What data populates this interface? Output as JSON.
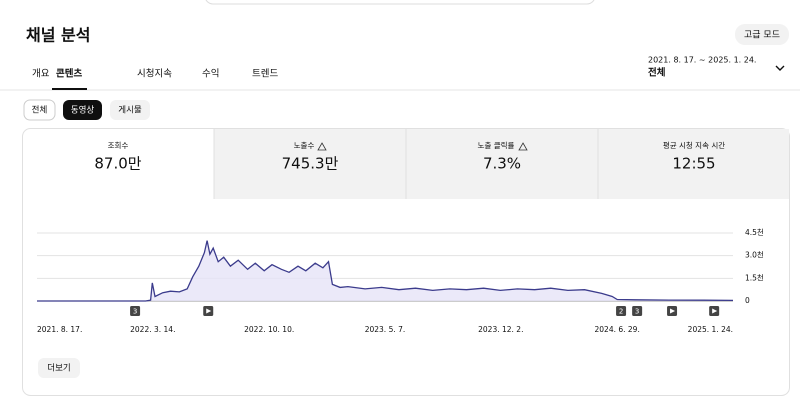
{
  "header": {
    "title": "채널 분석",
    "button": "고급 모드"
  },
  "tabs": [
    "개요",
    "콘텐츠",
    "시청지속",
    "수익",
    "트렌드"
  ],
  "date_range": {
    "range": "2021. 8. 17. ~ 2025. 1. 24.",
    "label": "전체"
  },
  "chips": [
    "전체",
    "동영상",
    "게시물"
  ],
  "metrics": [
    {
      "label": "조회수",
      "value": "87.0만"
    },
    {
      "label": "노출수",
      "value": "745.3만"
    },
    {
      "label": "노출 클릭률",
      "value": "7.3%"
    },
    {
      "label": "평균 시청 지속 시간",
      "value": "12:55"
    }
  ],
  "chart": {
    "type": "line",
    "color": "#3b3b8c",
    "x": [
      "2021-08-17",
      "2022-03-01",
      "2022-03-10",
      "2022-03-13",
      "2022-03-18",
      "2022-04-01",
      "2022-04-15",
      "2022-05-01",
      "2022-05-15",
      "2022-05-25",
      "2022-06-05",
      "2022-06-15",
      "2022-06-20",
      "2022-06-25",
      "2022-07-01",
      "2022-07-10",
      "2022-07-20",
      "2022-08-01",
      "2022-08-15",
      "2022-09-01",
      "2022-09-15",
      "2022-10-01",
      "2022-10-15",
      "2022-11-01",
      "2022-11-15",
      "2022-12-01",
      "2022-12-15",
      "2023-01-01",
      "2023-01-15",
      "2023-01-25",
      "2023-02-01",
      "2023-02-15",
      "2023-03-01",
      "2023-04-01",
      "2023-05-01",
      "2023-06-01",
      "2023-07-01",
      "2023-08-01",
      "2023-09-01",
      "2023-10-01",
      "2023-11-01",
      "2023-12-01",
      "2024-01-01",
      "2024-02-01",
      "2024-03-01",
      "2024-04-01",
      "2024-05-01",
      "2024-06-01",
      "2024-06-20",
      "2024-06-29",
      "2024-08-01",
      "2024-10-01",
      "2024-12-01",
      "2025-01-24"
    ],
    "values": [
      0,
      0,
      50,
      1200,
      300,
      550,
      650,
      600,
      800,
      1600,
      2300,
      3200,
      4000,
      3100,
      3500,
      2600,
      2900,
      2300,
      2700,
      2100,
      2500,
      2000,
      2400,
      2100,
      1900,
      2300,
      2000,
      2500,
      2200,
      2600,
      1100,
      900,
      950,
      800,
      900,
      750,
      850,
      700,
      800,
      750,
      850,
      700,
      800,
      750,
      850,
      700,
      750,
      500,
      300,
      100,
      80,
      60,
      50,
      40
    ],
    "xlim": [
      "2021-08-17",
      "2025-01-24"
    ],
    "ylim": [
      0,
      4500
    ],
    "yticks": [
      {
        "value": 0,
        "label": "0"
      },
      {
        "value": 1500,
        "label": "1.5천"
      },
      {
        "value": 3000,
        "label": "3.0천"
      },
      {
        "value": 4500,
        "label": "4.5천"
      }
    ],
    "xticks": [
      {
        "value": "2021-08-17",
        "label": "2021. 8. 17."
      },
      {
        "value": "2022-03-14",
        "label": "2022. 3. 14."
      },
      {
        "value": "2022-10-10",
        "label": "2022. 10. 10."
      },
      {
        "value": "2023-05-07",
        "label": "2023. 5. 7."
      },
      {
        "value": "2023-12-02",
        "label": "2023. 12. 2."
      },
      {
        "value": "2024-06-29",
        "label": "2024. 6. 29."
      },
      {
        "value": "2025-01-24",
        "label": "2025. 1. 24."
      }
    ],
    "grid": true,
    "markers": [
      {
        "x": "2022-02-10",
        "label": "3"
      },
      {
        "x": "2022-06-22"
      },
      {
        "x": "2024-07-06",
        "label": "2"
      },
      {
        "x": "2024-08-04",
        "label": "3"
      },
      {
        "x": "2024-10-06"
      },
      {
        "x": "2024-12-21"
      }
    ]
  },
  "more_button": "더보기"
}
